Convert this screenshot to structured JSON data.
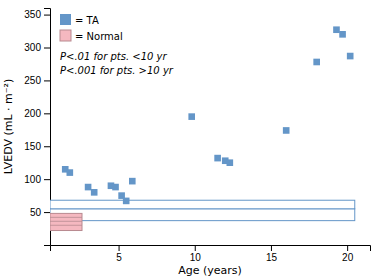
{
  "chart_data": {
    "type": "scatter",
    "xlabel": "Age (years)",
    "ylabel": "LVEDV (mL · m⁻²)",
    "xlim": [
      0.5,
      21.5
    ],
    "ylim": [
      0,
      360
    ],
    "xticks": [
      5,
      10,
      15,
      20
    ],
    "yticks": [
      50,
      100,
      150,
      200,
      250,
      300,
      350
    ],
    "series": [
      {
        "name": "= TA",
        "color": "#6496c8",
        "marker": "square",
        "x": [
          1.5,
          1.8,
          3.0,
          3.4,
          4.5,
          4.8,
          5.2,
          5.5,
          5.9,
          9.8,
          11.5,
          12.0,
          12.3,
          16.0,
          18.0,
          19.3,
          19.7,
          20.2
        ],
        "values": [
          115,
          110,
          88,
          80,
          90,
          88,
          75,
          67,
          97,
          195,
          132,
          128,
          125,
          174,
          278,
          327,
          320,
          287
        ]
      }
    ],
    "normal": {
      "name": "= Normal",
      "color": "#f5b8c0",
      "x": [
        0.5,
        2.6
      ],
      "y": [
        22,
        48
      ],
      "lines": [
        30,
        36,
        42
      ]
    },
    "bands": [
      {
        "color": "#6496c8",
        "x": [
          0.5,
          20.5
        ],
        "y": [
          37,
          55
        ]
      },
      {
        "color": "#6496c8",
        "x": [
          0.5,
          20.5
        ],
        "y": [
          55,
          68
        ]
      }
    ],
    "annotations": [
      "P<.01 for pts. <10 yr",
      "P<.001 for pts. >10 yr"
    ],
    "legend": "upper left"
  }
}
